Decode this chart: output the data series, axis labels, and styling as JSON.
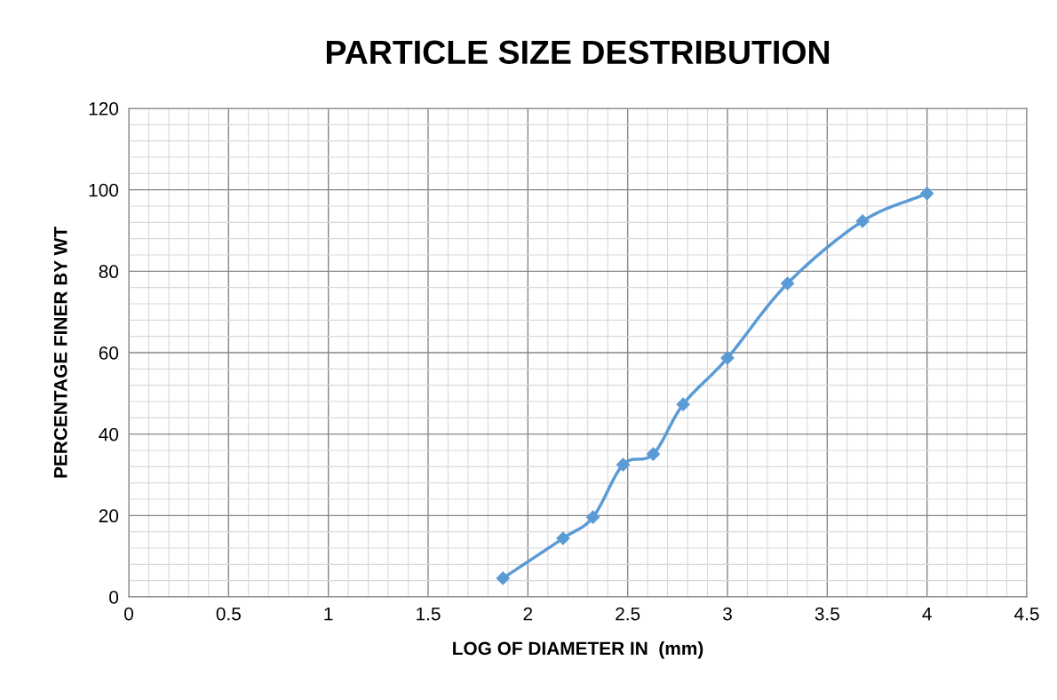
{
  "chart_data": {
    "type": "line",
    "title": "PARTICLE SIZE DESTRIBUTION",
    "xlabel": "LOG OF DIAMETER IN  (mm)",
    "ylabel": "PERCENTAGE FINER BY WT",
    "series": [
      {
        "color": "#5b9bd5",
        "x": [
          1.875,
          2.176,
          2.326,
          2.477,
          2.628,
          2.778,
          3.0,
          3.301,
          3.677,
          4.0
        ],
        "values": [
          4.6,
          14.4,
          19.6,
          32.5,
          35.1,
          47.3,
          58.7,
          77.0,
          92.3,
          99.1
        ]
      }
    ],
    "xlim": [
      0,
      4.5
    ],
    "xticks": [
      0,
      0.5,
      1,
      1.5,
      2,
      2.5,
      3,
      3.5,
      4,
      4.5
    ],
    "ylim": [
      0,
      120
    ],
    "yticks": [
      0,
      20,
      40,
      60,
      80,
      100,
      120
    ],
    "grid": true,
    "marker": "diamond",
    "line_style": "solid"
  }
}
